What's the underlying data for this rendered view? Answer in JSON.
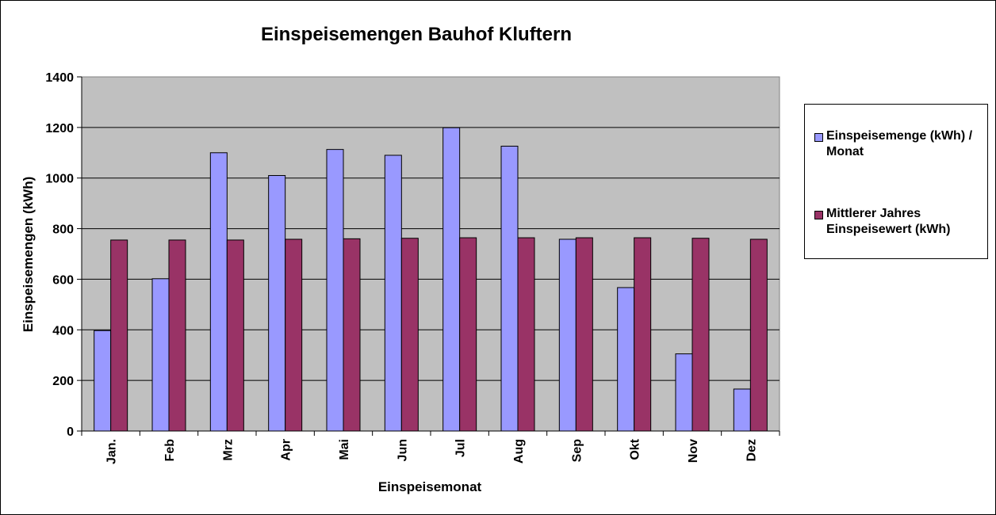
{
  "chart_data": {
    "type": "bar",
    "title": "Einspeisemengen Bauhof Kluftern",
    "xlabel": "Einspeisemonat",
    "ylabel": "Einspeisemengen (kWh)",
    "ylim": [
      0,
      1400
    ],
    "yticks": [
      0,
      200,
      400,
      600,
      800,
      1000,
      1200,
      1400
    ],
    "grid": true,
    "legend_position": "right",
    "categories": [
      "Jan.",
      "Feb",
      "Mrz",
      "Apr",
      "Mai",
      "Jun",
      "Jul",
      "Aug",
      "Sep",
      "Okt",
      "Nov",
      "Dez"
    ],
    "series": [
      {
        "name": "Einspeisemenge (kWh) / Monat",
        "legend_lines": [
          "Einspeisemenge (kWh) /",
          "Monat"
        ],
        "color": "#9999FF",
        "values": [
          397,
          602,
          1100,
          1010,
          1113,
          1090,
          1199,
          1126,
          758,
          567,
          305,
          166
        ]
      },
      {
        "name": "Mittlerer Jahres Einspeisewert (kWh)",
        "legend_lines": [
          "Mittlerer Jahres",
          "Einspeisewert (kWh)"
        ],
        "color": "#993366",
        "values": [
          755,
          755,
          755,
          758,
          760,
          762,
          764,
          764,
          764,
          764,
          762,
          758
        ]
      }
    ],
    "plot_background": "#C0C0C0"
  }
}
